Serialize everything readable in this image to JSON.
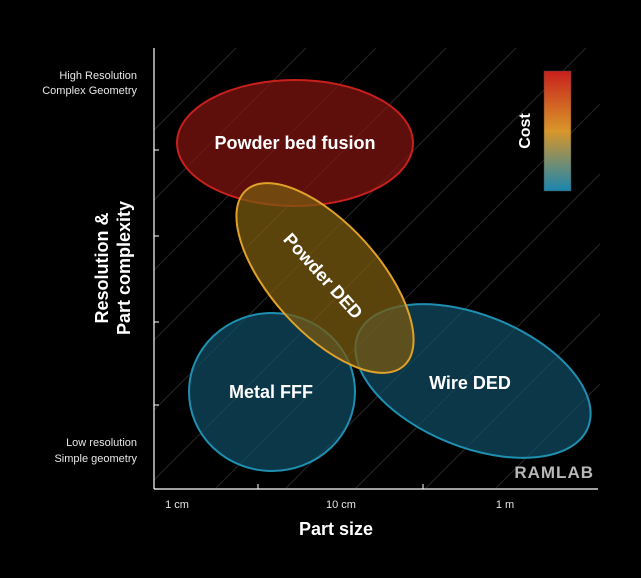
{
  "y_axis": {
    "title_line1": "Resolution &",
    "title_line2": "Part complexity",
    "top_label_line1": "High Resolution",
    "top_label_line2": "Complex Geometry",
    "bottom_label_line1": "Low resolution",
    "bottom_label_line2": "Simple geometry"
  },
  "x_axis": {
    "title": "Part size",
    "ticks": [
      "1 cm",
      "10 cm",
      "1 m"
    ]
  },
  "regions": {
    "powder_bed": {
      "label": "Powder bed fusion",
      "color": "#c8201c"
    },
    "powder_ded": {
      "label": "Powder DED",
      "color": "#e0a12a"
    },
    "metal_fff": {
      "label": "Metal FFF",
      "color": "#1f8fb0"
    },
    "wire_ded": {
      "label": "Wire DED",
      "color": "#1f8fb0"
    }
  },
  "legend": {
    "title": "Cost",
    "gradient_top": "#c8201c",
    "gradient_mid": "#d9962a",
    "gradient_bottom": "#1a86b0"
  },
  "brand": "RAMLAB"
}
